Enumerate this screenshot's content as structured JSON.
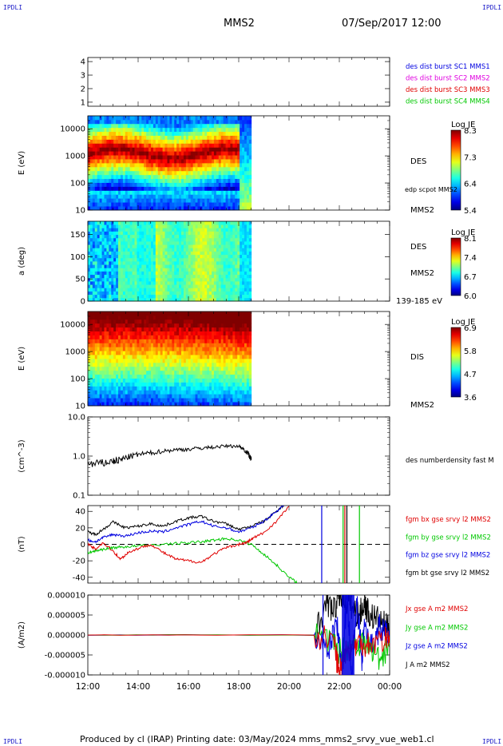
{
  "header": {
    "logo_left": "IPDLI",
    "logo_right": "IPDLI",
    "spacecraft": "MMS2",
    "datetime": "07/Sep/2017 12:00"
  },
  "footer": {
    "logo_left": "IPDLI",
    "logo_right": "IPDLI",
    "credits": "Produced by cl (IRAP)   Printing date: 03/May/2024   mms_mms2_srvy_vue_web1.cl"
  },
  "colors": {
    "blue": "#0000e0",
    "magenta": "#e000e0",
    "red": "#e00000",
    "green": "#00c800",
    "black": "#000000"
  },
  "chart_data": [
    {
      "id": "burst",
      "type": "line",
      "ylabel": "",
      "yticks": [
        "1",
        "2",
        "3",
        "4"
      ],
      "ylim": [
        0.7,
        4.3
      ],
      "legend": [
        {
          "label": "des dist burst SC1 MMS1",
          "color": "#0000e0"
        },
        {
          "label": "des dist burst SC2 MMS2",
          "color": "#e000e0"
        },
        {
          "label": "des dist burst SC3 MMS3",
          "color": "#e00000"
        },
        {
          "label": "des dist burst SC4 MMS4",
          "color": "#00c800"
        }
      ]
    },
    {
      "id": "des-energy",
      "type": "heatmap",
      "ylabel": "E (eV)",
      "yscale": "log",
      "ylim": [
        10,
        30000
      ],
      "yticks": [
        "10",
        "100",
        "1000",
        "10000"
      ],
      "xlim_hours": [
        12,
        24
      ],
      "data_end_hour": 18.5,
      "right_labels": [
        "DES",
        "edp scpot MMS2",
        "MMS2"
      ],
      "colorbar": {
        "title": "Log JE",
        "ticks": [
          "8.3",
          "7.3",
          "6.4",
          "5.4"
        ]
      }
    },
    {
      "id": "des-pitch",
      "type": "heatmap",
      "ylabel": "a (deg)",
      "ylim": [
        0,
        180
      ],
      "yticks": [
        "0",
        "50",
        "100",
        "150"
      ],
      "xlim_hours": [
        12,
        24
      ],
      "data_end_hour": 18.5,
      "right_labels": [
        "DES",
        "MMS2",
        "139-185 eV"
      ],
      "colorbar": {
        "title": "Log JE",
        "ticks": [
          "8.1",
          "7.4",
          "6.7",
          "6.0"
        ]
      }
    },
    {
      "id": "dis-energy",
      "type": "heatmap",
      "ylabel": "E (eV)",
      "yscale": "log",
      "ylim": [
        10,
        30000
      ],
      "yticks": [
        "10",
        "100",
        "1000",
        "10000"
      ],
      "xlim_hours": [
        12,
        24
      ],
      "data_end_hour": 18.5,
      "right_labels": [
        "DIS",
        "MMS2"
      ],
      "colorbar": {
        "title": "Log JE",
        "ticks": [
          "6.9",
          "5.8",
          "4.7",
          "3.6"
        ]
      }
    },
    {
      "id": "density",
      "type": "line",
      "ylabel": "(cm^-3)",
      "yscale": "log",
      "ylim": [
        0.1,
        10
      ],
      "yticks": [
        "0.1",
        "1.0",
        "10.0"
      ],
      "legend": [
        {
          "label": "des numberdensity fast M",
          "color": "#000000"
        }
      ],
      "series": [
        {
          "name": "des numberdensity fast M",
          "color": "#000000",
          "x": [
            12.0,
            12.5,
            13.0,
            13.3,
            13.6,
            14.0,
            14.5,
            15.0,
            15.5,
            16.0,
            16.5,
            17.0,
            17.5,
            18.0,
            18.2,
            18.4,
            18.5
          ],
          "y": [
            0.6,
            0.65,
            0.75,
            0.8,
            0.95,
            1.1,
            1.2,
            1.35,
            1.45,
            1.5,
            1.6,
            1.7,
            1.8,
            1.8,
            1.5,
            1.1,
            0.8
          ]
        }
      ]
    },
    {
      "id": "magnetic-field",
      "type": "line",
      "ylabel": "(nT)",
      "ylim": [
        -47,
        47
      ],
      "yticks": [
        "-40",
        "-20",
        "0",
        "20",
        "40"
      ],
      "legend": [
        {
          "label": "fgm bx gse srvy l2 MMS2",
          "color": "#e00000"
        },
        {
          "label": "fgm by gse srvy l2 MMS2",
          "color": "#00c800"
        },
        {
          "label": "fgm bz gse srvy l2 MMS2",
          "color": "#0000e0"
        },
        {
          "label": "fgm bt gse srvy l2 MMS2",
          "color": "#000000"
        }
      ],
      "series": [
        {
          "name": "fgm bt gse srvy l2 MMS2",
          "color": "#000000",
          "x": [
            12.0,
            12.3,
            12.6,
            13.0,
            13.5,
            14.0,
            14.5,
            15.0,
            15.5,
            16.0,
            16.5,
            17.0,
            17.5,
            18.0,
            18.5,
            19.0,
            19.5,
            19.8
          ],
          "y": [
            15,
            12,
            18,
            27,
            20,
            22,
            25,
            22,
            28,
            32,
            34,
            28,
            25,
            18,
            22,
            28,
            40,
            48
          ]
        },
        {
          "name": "fgm bz gse srvy l2 MMS2",
          "color": "#0000e0",
          "x": [
            12.0,
            12.3,
            12.6,
            13.0,
            13.5,
            14.0,
            14.5,
            15.0,
            15.5,
            16.0,
            16.5,
            17.0,
            17.5,
            18.0,
            18.5,
            19.0,
            19.5,
            19.8
          ],
          "y": [
            5,
            3,
            8,
            12,
            10,
            14,
            16,
            15,
            20,
            24,
            28,
            22,
            20,
            15,
            20,
            28,
            40,
            48
          ]
        },
        {
          "name": "fgm by gse srvy l2 MMS2",
          "color": "#00c800",
          "x": [
            12.0,
            12.3,
            12.6,
            13.0,
            13.5,
            14.0,
            15.0,
            16.0,
            16.5,
            17.0,
            17.5,
            18.0,
            18.5,
            19.0,
            19.5,
            20.0,
            20.4
          ],
          "y": [
            -10,
            -8,
            -6,
            -4,
            -3,
            -2,
            0,
            2,
            3,
            5,
            7,
            5,
            0,
            -12,
            -25,
            -40,
            -48
          ]
        },
        {
          "name": "fgm bx gse srvy l2 MMS2",
          "color": "#e00000",
          "x": [
            12.0,
            12.3,
            12.6,
            13.0,
            13.3,
            13.6,
            14.0,
            14.5,
            15.0,
            15.5,
            16.0,
            16.5,
            17.0,
            17.5,
            18.0,
            18.3,
            18.6,
            19.0,
            19.5,
            20.0
          ],
          "y": [
            0,
            -6,
            2,
            -8,
            -18,
            -10,
            -5,
            0,
            -10,
            -18,
            -20,
            -22,
            -12,
            -4,
            0,
            2,
            8,
            14,
            28,
            46
          ]
        }
      ]
    },
    {
      "id": "current-density",
      "type": "line",
      "ylabel": "(A/m2)",
      "ylim": [
        -1e-05,
        1e-05
      ],
      "yticks": [
        "-0.000010",
        "-0.000005",
        "0.000000",
        "0.000005",
        "0.000010"
      ],
      "legend": [
        {
          "label": "Jx gse A m2 MMS2",
          "color": "#e00000"
        },
        {
          "label": "Jy gse A m2 MMS2",
          "color": "#00c800"
        },
        {
          "label": "Jz gse A m2 MMS2",
          "color": "#0000e0"
        },
        {
          "label": "J A m2 MMS2",
          "color": "#000000"
        }
      ],
      "series": [
        {
          "name": "J A m2 MMS2",
          "color": "#000000",
          "x": [
            12.0,
            21.0,
            21.5,
            21.8,
            22.0,
            22.2,
            22.4,
            22.6,
            22.8,
            23.0,
            23.2,
            23.5,
            23.8,
            24.0
          ],
          "y": [
            0.0,
            0.0,
            8e-06,
            6e-06,
            1e-05,
            9e-06,
            8e-06,
            6e-06,
            5e-06,
            8e-06,
            5e-06,
            4e-06,
            2.5e-06,
            1e-06
          ]
        },
        {
          "name": "Jz gse A m2 MMS2",
          "color": "#0000e0",
          "x": [
            12.0,
            21.0,
            21.6,
            21.9,
            22.1,
            22.3,
            22.5,
            22.7,
            22.9,
            23.0,
            23.3,
            23.6,
            24.0
          ],
          "y": [
            0.0,
            0.0,
            -3e-06,
            4e-06,
            -9e-06,
            1e-05,
            -1e-05,
            8e-06,
            -6e-06,
            3e-06,
            -3e-06,
            2e-06,
            0.0
          ]
        },
        {
          "name": "Jy gse A m2 MMS2",
          "color": "#00c800",
          "x": [
            12.0,
            21.0,
            21.7,
            22.0,
            22.4,
            22.8,
            23.2,
            23.6,
            24.0
          ],
          "y": [
            0.0,
            0.0,
            -2e-06,
            -4e-06,
            -3e-06,
            -2e-06,
            -3e-06,
            -6e-06,
            -2e-06
          ]
        },
        {
          "name": "Jx gse A m2 MMS2",
          "color": "#e00000",
          "x": [
            12.0,
            21.0,
            21.8,
            22.0,
            22.2,
            22.5,
            22.8,
            23.2,
            23.8,
            24.0
          ],
          "y": [
            0.0,
            0.0,
            -2e-06,
            -1e-05,
            -4e-06,
            -3e-06,
            -2e-06,
            -2e-06,
            -1e-06,
            0.0
          ]
        }
      ]
    }
  ],
  "xaxis": {
    "xlim_hours": [
      12,
      24
    ],
    "tick_hours": [
      12,
      14,
      16,
      18,
      20,
      22,
      24
    ],
    "tick_labels": [
      "12:00",
      "14:00",
      "16:00",
      "18:00",
      "20:00",
      "22:00",
      "00:00"
    ]
  }
}
